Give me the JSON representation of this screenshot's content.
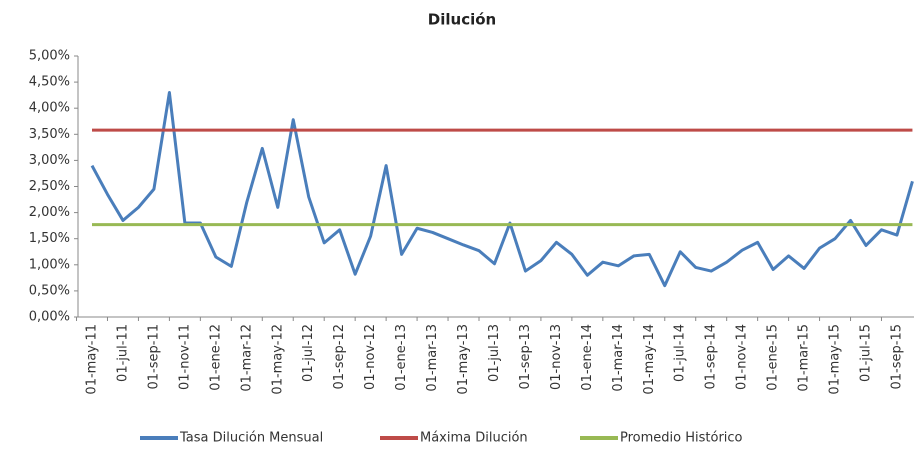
{
  "chart_data": {
    "type": "line",
    "title": "Dilución",
    "categories": [
      "01-may-11",
      null,
      "01-jul-11",
      null,
      "01-sep-11",
      null,
      "01-nov-11",
      null,
      "01-ene-12",
      null,
      "01-mar-12",
      null,
      "01-may-12",
      null,
      "01-jul-12",
      null,
      "01-sep-12",
      null,
      "01-nov-12",
      null,
      "01-ene-13",
      null,
      "01-mar-13",
      null,
      "01-may-13",
      null,
      "01-jul-13",
      null,
      "01-sep-13",
      null,
      "01-nov-13",
      null,
      "01-ene-14",
      null,
      "01-mar-14",
      null,
      "01-may-14",
      null,
      "01-jul-14",
      null,
      "01-sep-14",
      null,
      "01-nov-14",
      null,
      "01-ene-15",
      null,
      "01-mar-15",
      null,
      "01-may-15",
      null,
      "01-jul-15",
      null,
      "01-sep-15",
      null
    ],
    "series": [
      {
        "name": "Tasa Dilución Mensual",
        "color": "#4a7ebb",
        "values": [
          2.9,
          2.35,
          1.85,
          2.1,
          2.45,
          4.3,
          1.8,
          1.8,
          1.15,
          0.97,
          2.2,
          3.23,
          2.1,
          3.78,
          2.3,
          1.42,
          1.67,
          0.82,
          1.55,
          2.9,
          1.2,
          1.7,
          1.62,
          1.5,
          1.38,
          1.27,
          1.02,
          1.8,
          0.88,
          1.08,
          1.43,
          1.2,
          0.8,
          1.05,
          0.98,
          1.17,
          1.2,
          0.6,
          1.25,
          0.95,
          0.88,
          1.05,
          1.28,
          1.43,
          0.91,
          1.17,
          0.93,
          1.32,
          1.5,
          1.85,
          1.37,
          1.67,
          1.57,
          2.6
        ]
      },
      {
        "name": "Máxima Dilución",
        "color": "#be4b48",
        "values": [
          3.58,
          3.58,
          3.58,
          3.58,
          3.58,
          3.58,
          3.58,
          3.58,
          3.58,
          3.58,
          3.58,
          3.58,
          3.58,
          3.58,
          3.58,
          3.58,
          3.58,
          3.58,
          3.58,
          3.58,
          3.58,
          3.58,
          3.58,
          3.58,
          3.58,
          3.58,
          3.58,
          3.58,
          3.58,
          3.58,
          3.58,
          3.58,
          3.58,
          3.58,
          3.58,
          3.58,
          3.58,
          3.58,
          3.58,
          3.58,
          3.58,
          3.58,
          3.58,
          3.58,
          3.58,
          3.58,
          3.58,
          3.58,
          3.58,
          3.58,
          3.58,
          3.58,
          3.58,
          3.58
        ]
      },
      {
        "name": "Promedio Histórico",
        "color": "#98b954",
        "values": [
          1.77,
          1.77,
          1.77,
          1.77,
          1.77,
          1.77,
          1.77,
          1.77,
          1.77,
          1.77,
          1.77,
          1.77,
          1.77,
          1.77,
          1.77,
          1.77,
          1.77,
          1.77,
          1.77,
          1.77,
          1.77,
          1.77,
          1.77,
          1.77,
          1.77,
          1.77,
          1.77,
          1.77,
          1.77,
          1.77,
          1.77,
          1.77,
          1.77,
          1.77,
          1.77,
          1.77,
          1.77,
          1.77,
          1.77,
          1.77,
          1.77,
          1.77,
          1.77,
          1.77,
          1.77,
          1.77,
          1.77,
          1.77,
          1.77,
          1.77,
          1.77,
          1.77,
          1.77,
          1.77
        ]
      }
    ],
    "ylim": [
      0,
      5
    ],
    "yticks": [
      {
        "value": 0,
        "label": "0,00%"
      },
      {
        "value": 0.5,
        "label": "0,50%"
      },
      {
        "value": 1,
        "label": "1,00%"
      },
      {
        "value": 1.5,
        "label": "1,50%"
      },
      {
        "value": 2,
        "label": "2,00%"
      },
      {
        "value": 2.5,
        "label": "2,50%"
      },
      {
        "value": 3,
        "label": "3,00%"
      },
      {
        "value": 3.5,
        "label": "3,50%"
      },
      {
        "value": 4,
        "label": "4,00%"
      },
      {
        "value": 4.5,
        "label": "4,50%"
      },
      {
        "value": 5,
        "label": "5,00%"
      }
    ],
    "legend": "bottom"
  }
}
